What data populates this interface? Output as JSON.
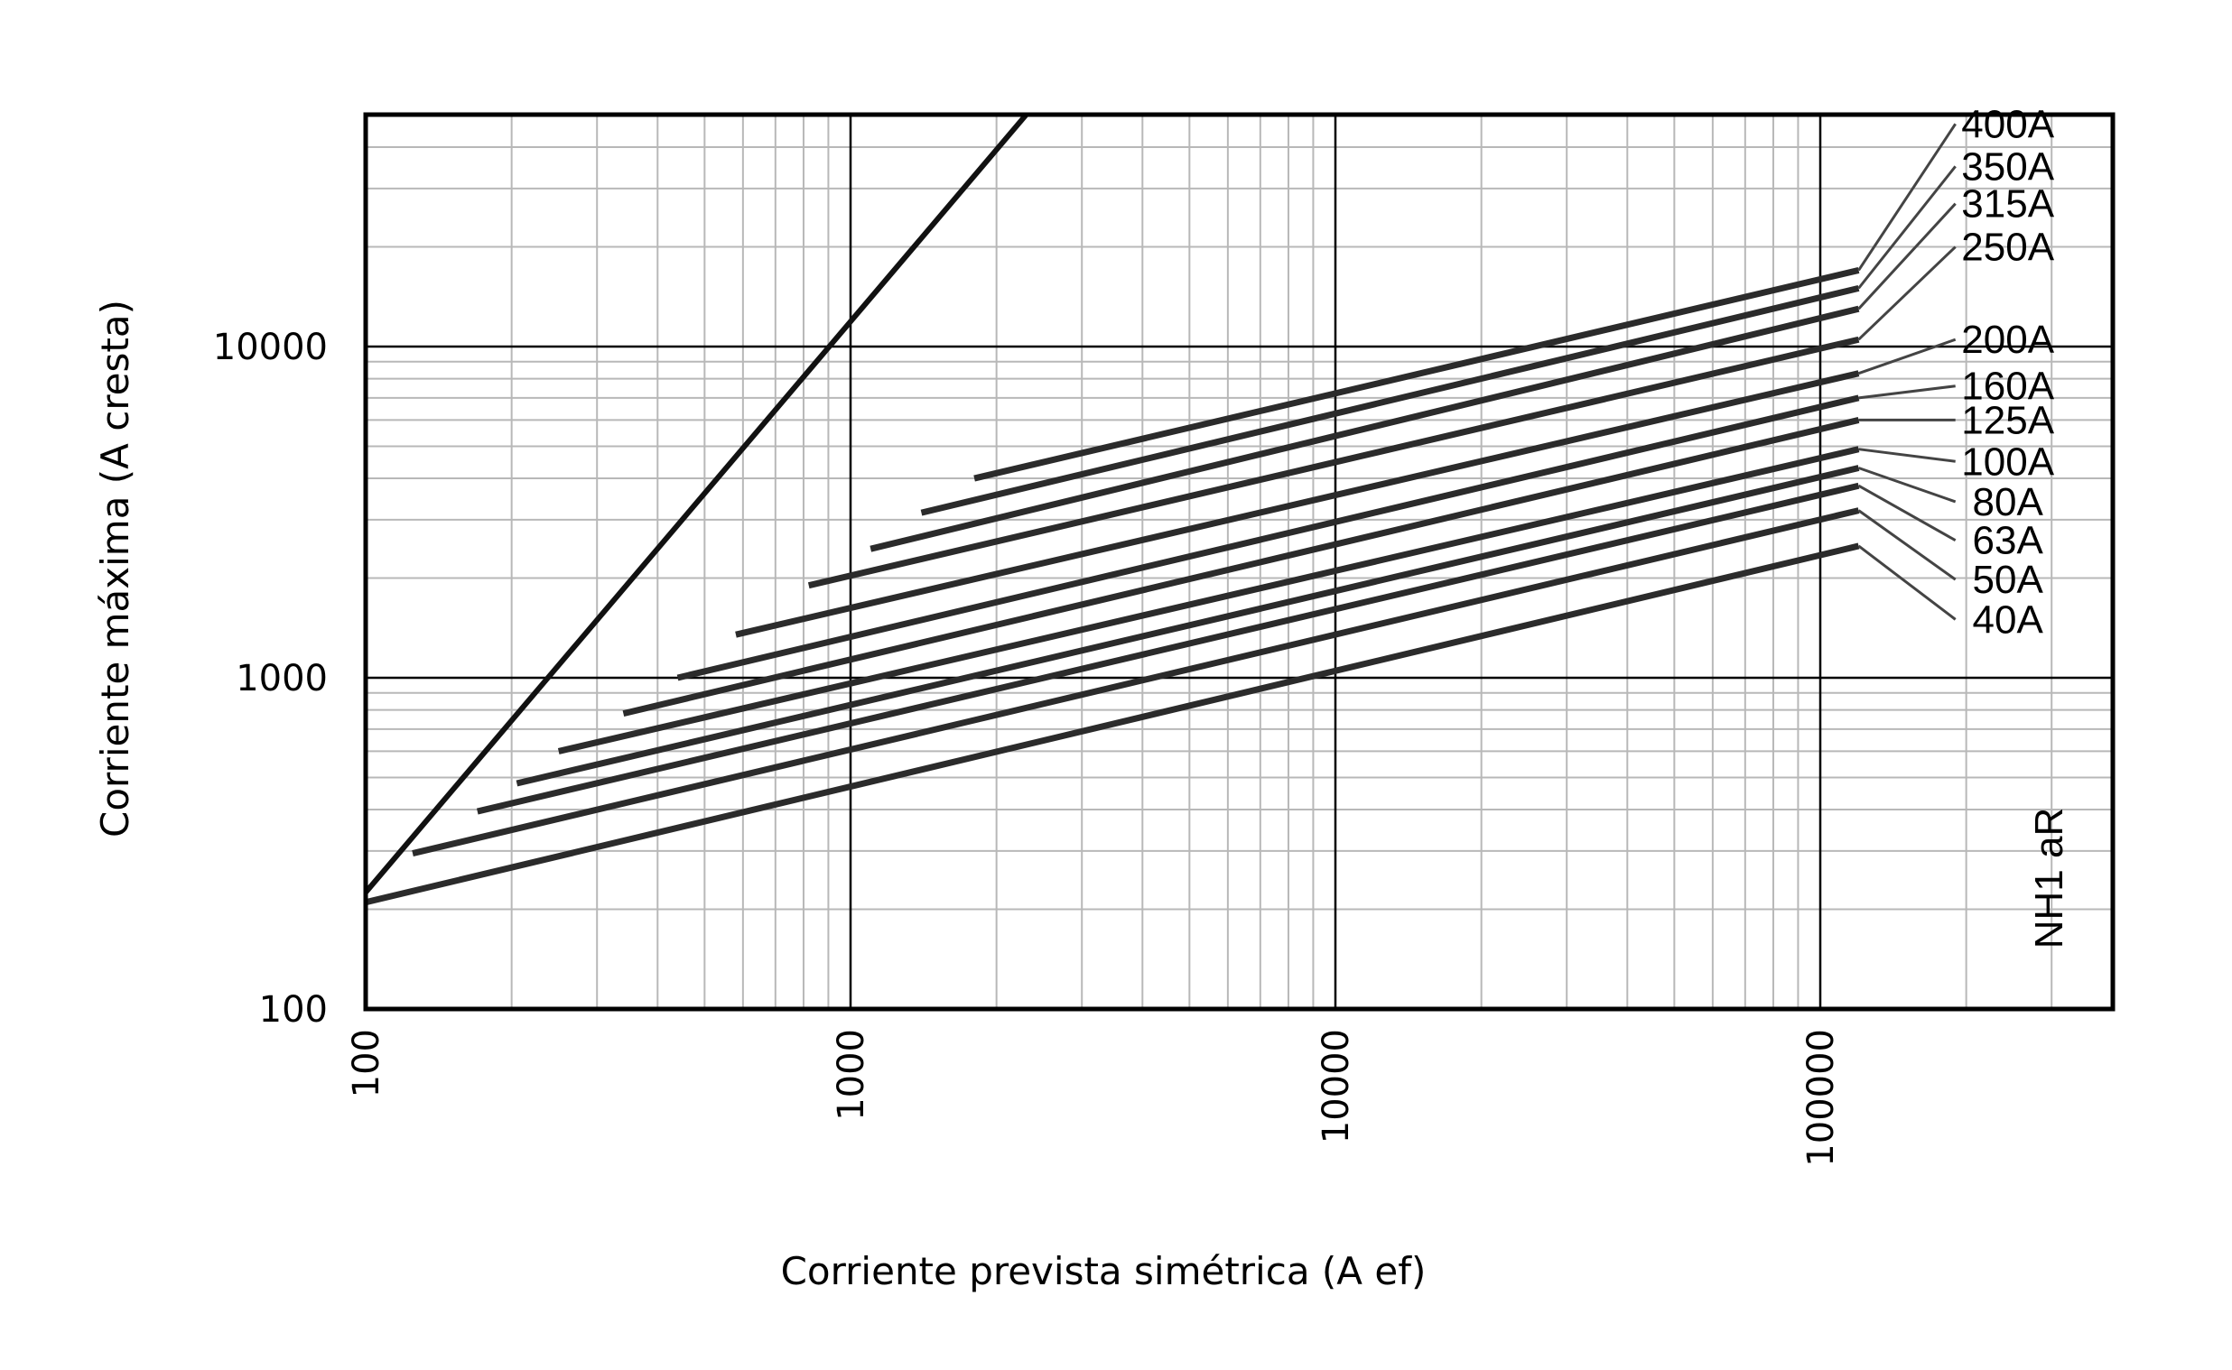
{
  "chart_data": {
    "type": "line",
    "title": "",
    "xlabel": "Corriente prevista simétrica (A ef)",
    "ylabel": "Corriente máxima (A cresta)",
    "x_scale": "log",
    "y_scale": "log",
    "xlim": [
      100,
      360000
    ],
    "ylim": [
      100,
      50000
    ],
    "grid": true,
    "x_ticks": [
      {
        "value": 100,
        "label": "100"
      },
      {
        "value": 1000,
        "label": "1000"
      },
      {
        "value": 10000,
        "label": "10000"
      },
      {
        "value": 100000,
        "label": "100000"
      }
    ],
    "y_ticks": [
      {
        "value": 100,
        "label": "100"
      },
      {
        "value": 1000,
        "label": "1000"
      },
      {
        "value": 10000,
        "label": "10000"
      }
    ],
    "annotation": "NH1 aR",
    "series": [
      {
        "name": "",
        "role": "envelope",
        "points": [
          [
            100,
            225
          ],
          [
            2300,
            50000
          ]
        ]
      },
      {
        "name": "400A",
        "points": [
          [
            1800,
            4000
          ],
          [
            120000,
            17000
          ]
        ],
        "label_at": [
          [
            120000,
            17000
          ],
          [
            190000,
            47000
          ]
        ]
      },
      {
        "name": "350A",
        "points": [
          [
            1400,
            3150
          ],
          [
            120000,
            15000
          ]
        ],
        "label_at": [
          [
            120000,
            15000
          ],
          [
            190000,
            35000
          ]
        ]
      },
      {
        "name": "315A",
        "points": [
          [
            1100,
            2450
          ],
          [
            120000,
            13000
          ]
        ],
        "label_at": [
          [
            120000,
            13000
          ],
          [
            190000,
            27000
          ]
        ]
      },
      {
        "name": "250A",
        "points": [
          [
            820,
            1900
          ],
          [
            120000,
            10500
          ]
        ],
        "label_at": [
          [
            120000,
            10500
          ],
          [
            190000,
            20000
          ]
        ]
      },
      {
        "name": "200A",
        "points": [
          [
            580,
            1350
          ],
          [
            120000,
            8300
          ]
        ],
        "label_at": [
          [
            120000,
            8300
          ],
          [
            190000,
            10500
          ]
        ]
      },
      {
        "name": "160A",
        "points": [
          [
            440,
            1000
          ],
          [
            120000,
            7000
          ]
        ],
        "label_at": [
          [
            120000,
            7000
          ],
          [
            190000,
            7600
          ]
        ]
      },
      {
        "name": "125A",
        "points": [
          [
            340,
            780
          ],
          [
            120000,
            6000
          ]
        ],
        "label_at": [
          [
            120000,
            6000
          ],
          [
            190000,
            6000
          ]
        ]
      },
      {
        "name": "100A",
        "points": [
          [
            250,
            600
          ],
          [
            120000,
            4900
          ]
        ],
        "label_at": [
          [
            120000,
            4900
          ],
          [
            190000,
            4500
          ]
        ]
      },
      {
        "name": "80A",
        "points": [
          [
            205,
            480
          ],
          [
            120000,
            4300
          ]
        ],
        "label_at": [
          [
            120000,
            4300
          ],
          [
            190000,
            3400
          ]
        ]
      },
      {
        "name": "63A",
        "points": [
          [
            170,
            395
          ],
          [
            120000,
            3800
          ]
        ],
        "label_at": [
          [
            120000,
            3800
          ],
          [
            190000,
            2600
          ]
        ]
      },
      {
        "name": "50A",
        "points": [
          [
            125,
            295
          ],
          [
            120000,
            3200
          ]
        ],
        "label_at": [
          [
            120000,
            3200
          ],
          [
            190000,
            1980
          ]
        ]
      },
      {
        "name": "40A",
        "points": [
          [
            100,
            210
          ],
          [
            120000,
            2500
          ]
        ],
        "label_at": [
          [
            120000,
            2500
          ],
          [
            190000,
            1500
          ]
        ]
      }
    ]
  }
}
